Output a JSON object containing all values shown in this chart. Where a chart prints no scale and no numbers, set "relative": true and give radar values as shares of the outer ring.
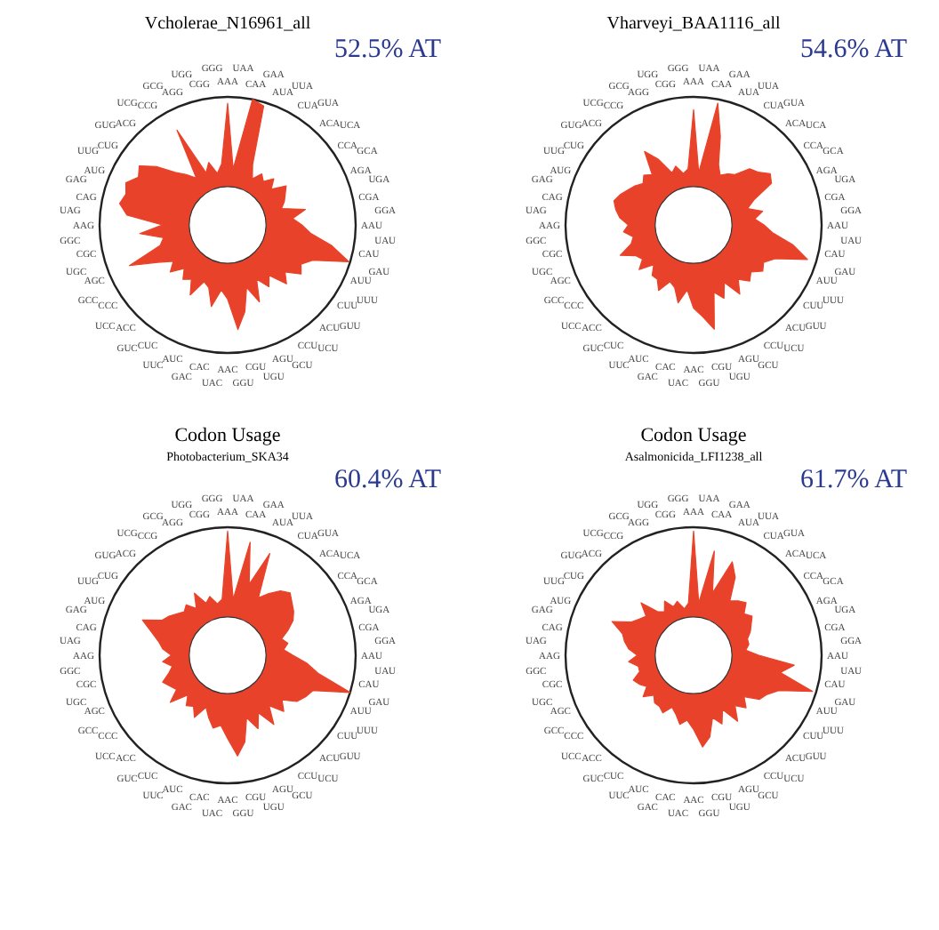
{
  "chart_data": [
    {
      "type": "radar",
      "title": "Vcholerae_N16961_all",
      "relative": true,
      "annotations": [
        "52.5% AT"
      ],
      "categories": [
        "AAA",
        "UAA",
        "CAA",
        "GAA",
        "AUA",
        "UUA",
        "CUA",
        "GUA",
        "ACA",
        "UCA",
        "CCA",
        "GCA",
        "AGA",
        "UGA",
        "CGA",
        "GGA",
        "AAU",
        "UAU",
        "CAU",
        "GAU",
        "AUU",
        "UUU",
        "CUU",
        "GUU",
        "ACU",
        "UCU",
        "CCU",
        "GCU",
        "AGU",
        "UGU",
        "CGU",
        "GGU",
        "AAC",
        "UAC",
        "CAC",
        "GAC",
        "AUC",
        "UUC",
        "CUC",
        "GUC",
        "ACC",
        "UCC",
        "CCC",
        "GCC",
        "AGC",
        "UGC",
        "CGC",
        "GGC",
        "AAG",
        "UAG",
        "CAG",
        "GAG",
        "AUG",
        "UUG",
        "CUG",
        "GUG",
        "ACG",
        "UCG",
        "CCG",
        "GCG",
        "AGG",
        "UGG",
        "CGG",
        "GGG"
      ],
      "series": [
        {
          "color": "#e8432a",
          "values": [
            0.95,
            0.44,
            1.0,
            0.97,
            0.51,
            0.41,
            0.48,
            0.44,
            0.51,
            0.44,
            0.55,
            0.51,
            0.48,
            0.44,
            0.62,
            0.51,
            0.58,
            0.65,
            0.83,
            0.99,
            0.72,
            0.65,
            0.69,
            0.58,
            0.65,
            0.51,
            0.58,
            0.48,
            0.65,
            0.51,
            0.69,
            0.82,
            0.58,
            0.51,
            0.65,
            0.51,
            0.48,
            0.62,
            0.51,
            0.55,
            0.48,
            0.58,
            0.51,
            0.62,
            0.83,
            0.55,
            0.51,
            0.69,
            0.51,
            0.79,
            0.86,
            0.83,
            0.86,
            0.79,
            0.83,
            0.72,
            0.58,
            0.51,
            0.44,
            0.84,
            0.44,
            0.51,
            0.41,
            0.48
          ]
        }
      ]
    },
    {
      "type": "radar",
      "title": "Vharveyi_BAA1116_all",
      "relative": true,
      "annotations": [
        "54.6% AT"
      ],
      "categories": [
        "AAA",
        "UAA",
        "CAA",
        "GAA",
        "AUA",
        "UUA",
        "CUA",
        "GUA",
        "ACA",
        "UCA",
        "CCA",
        "GCA",
        "AGA",
        "UGA",
        "CGA",
        "GGA",
        "AAU",
        "UAU",
        "CAU",
        "GAU",
        "AUU",
        "UUU",
        "CUU",
        "GUU",
        "ACU",
        "UCU",
        "CCU",
        "GCU",
        "AGU",
        "UGU",
        "CGU",
        "GGU",
        "AAC",
        "UAC",
        "CAC",
        "GAC",
        "AUC",
        "UUC",
        "CUC",
        "GUC",
        "ACC",
        "UCC",
        "CCC",
        "GCC",
        "AGC",
        "UGC",
        "CGC",
        "GGC",
        "AAG",
        "UAG",
        "CAG",
        "GAG",
        "AUG",
        "UUG",
        "CUG",
        "GUG",
        "ACG",
        "UCG",
        "CCG",
        "GCG",
        "AGG",
        "UGG",
        "CGG",
        "GGG"
      ],
      "series": [
        {
          "color": "#e8432a",
          "values": [
            0.9,
            0.41,
            0.97,
            0.72,
            0.51,
            0.44,
            0.48,
            0.51,
            0.62,
            0.65,
            0.72,
            0.69,
            0.51,
            0.44,
            0.55,
            0.48,
            0.55,
            0.62,
            0.79,
            0.93,
            0.69,
            0.62,
            0.65,
            0.58,
            0.62,
            0.55,
            0.65,
            0.51,
            0.62,
            0.55,
            0.83,
            0.72,
            0.65,
            0.51,
            0.62,
            0.51,
            0.48,
            0.58,
            0.51,
            0.51,
            0.44,
            0.55,
            0.48,
            0.51,
            0.62,
            0.51,
            0.48,
            0.55,
            0.51,
            0.58,
            0.62,
            0.65,
            0.62,
            0.58,
            0.55,
            0.51,
            0.55,
            0.51,
            0.69,
            0.58,
            0.44,
            0.48,
            0.41,
            0.44
          ]
        }
      ]
    },
    {
      "type": "radar",
      "title": "Codon Usage",
      "subtitle": "Photobacterium_SKA34",
      "relative": true,
      "annotations": [
        "60.4% AT"
      ],
      "categories": [
        "AAA",
        "UAA",
        "CAA",
        "GAA",
        "AUA",
        "UUA",
        "CUA",
        "GUA",
        "ACA",
        "UCA",
        "CCA",
        "GCA",
        "AGA",
        "UGA",
        "CGA",
        "GGA",
        "AAU",
        "UAU",
        "CAU",
        "GAU",
        "AUU",
        "UUU",
        "CUU",
        "GUU",
        "ACU",
        "UCU",
        "CCU",
        "GCU",
        "AGU",
        "UGU",
        "CGU",
        "GGU",
        "AAC",
        "UAC",
        "CAC",
        "GAC",
        "AUC",
        "UUC",
        "CUC",
        "GUC",
        "ACC",
        "UCC",
        "CCC",
        "GCC",
        "AGC",
        "UGC",
        "CGC",
        "GGC",
        "AAG",
        "UAG",
        "CAG",
        "GAG",
        "AUG",
        "UUG",
        "CUG",
        "GUG",
        "ACG",
        "UCG",
        "CCG",
        "GCG",
        "AGG",
        "UGG",
        "CGG",
        "GGG"
      ],
      "series": [
        {
          "color": "#e8432a",
          "values": [
            0.97,
            0.44,
            0.9,
            0.58,
            0.86,
            0.51,
            0.58,
            0.65,
            0.69,
            0.65,
            0.62,
            0.58,
            0.51,
            0.44,
            0.48,
            0.44,
            0.51,
            0.62,
            0.72,
            1.0,
            0.72,
            0.69,
            0.65,
            0.55,
            0.62,
            0.51,
            0.65,
            0.51,
            0.62,
            0.51,
            0.69,
            0.79,
            0.65,
            0.55,
            0.58,
            0.51,
            0.44,
            0.55,
            0.48,
            0.51,
            0.44,
            0.58,
            0.48,
            0.51,
            0.55,
            0.48,
            0.44,
            0.51,
            0.44,
            0.51,
            0.55,
            0.62,
            0.72,
            0.58,
            0.55,
            0.51,
            0.48,
            0.51,
            0.44,
            0.55,
            0.44,
            0.48,
            0.41,
            0.44
          ]
        }
      ]
    },
    {
      "type": "radar",
      "title": "Codon Usage",
      "subtitle": "Asalmonicida_LFI1238_all",
      "relative": true,
      "annotations": [
        "61.7% AT"
      ],
      "categories": [
        "AAA",
        "UAA",
        "CAA",
        "GAA",
        "AUA",
        "UUA",
        "CUA",
        "GUA",
        "ACA",
        "UCA",
        "CCA",
        "GCA",
        "AGA",
        "UGA",
        "CGA",
        "GGA",
        "AAU",
        "UAU",
        "CAU",
        "GAU",
        "AUU",
        "UUU",
        "CUU",
        "GUU",
        "ACU",
        "UCU",
        "CCU",
        "GCU",
        "AGU",
        "UGU",
        "CGU",
        "GGU",
        "AAC",
        "UAC",
        "CAC",
        "GAC",
        "AUC",
        "UUC",
        "CUC",
        "GUC",
        "ACC",
        "UCC",
        "CCC",
        "GCC",
        "AGC",
        "UGC",
        "CGC",
        "GGC",
        "AAG",
        "UAG",
        "CAG",
        "GAG",
        "AUG",
        "UUG",
        "CUG",
        "GUG",
        "ACG",
        "UCG",
        "CCG",
        "GCG",
        "AGG",
        "UGG",
        "CGG",
        "GGG"
      ],
      "series": [
        {
          "color": "#e8432a",
          "values": [
            0.97,
            0.41,
            0.83,
            0.51,
            0.79,
            0.69,
            0.51,
            0.55,
            0.58,
            0.51,
            0.55,
            0.51,
            0.48,
            0.44,
            0.44,
            0.41,
            0.51,
            0.79,
            0.69,
            0.97,
            0.72,
            0.65,
            0.62,
            0.51,
            0.58,
            0.51,
            0.62,
            0.48,
            0.58,
            0.51,
            0.65,
            0.72,
            0.58,
            0.51,
            0.55,
            0.48,
            0.44,
            0.51,
            0.48,
            0.48,
            0.44,
            0.51,
            0.44,
            0.48,
            0.51,
            0.44,
            0.44,
            0.51,
            0.44,
            0.51,
            0.55,
            0.58,
            0.69,
            0.55,
            0.51,
            0.48,
            0.58,
            0.44,
            0.41,
            0.48,
            0.41,
            0.44,
            0.37,
            0.41
          ]
        }
      ]
    }
  ]
}
